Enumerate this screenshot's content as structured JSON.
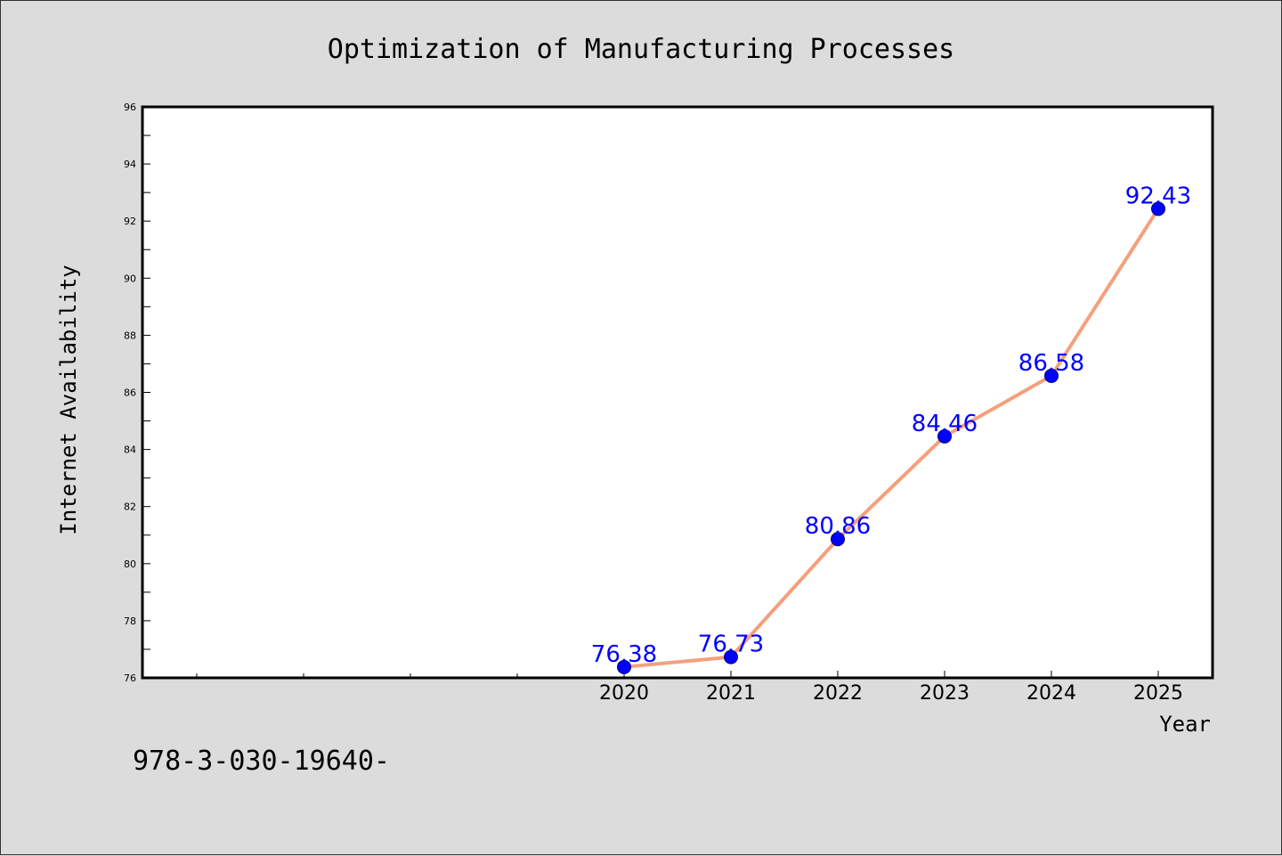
{
  "chart_data": {
    "type": "line",
    "title": "Optimization of Manufacturing Processes",
    "xlabel": "Year",
    "ylabel": "Internet Availability",
    "x": [
      "2020",
      "2021",
      "2022",
      "2023",
      "2024",
      "2025"
    ],
    "series": [
      {
        "values": [
          76.38,
          76.73,
          80.86,
          84.46,
          86.58,
          92.43
        ],
        "line_color": "#f4a07c",
        "marker_color": "#0000ff"
      }
    ],
    "data_labels": [
      "76.38",
      "76.73",
      "80.86",
      "84.46",
      "86.58",
      "92.43"
    ],
    "ylim": [
      76,
      96
    ],
    "yticks": [
      76,
      78,
      80,
      82,
      84,
      86,
      88,
      90,
      92,
      94,
      96
    ],
    "grid": false,
    "legend": "none",
    "background_color": "#dcdcdc",
    "plot_background_color": "#ffffff",
    "data_label_color": "#0000ff"
  },
  "footer": {
    "isbn_text": "978-3-030-19640-"
  }
}
